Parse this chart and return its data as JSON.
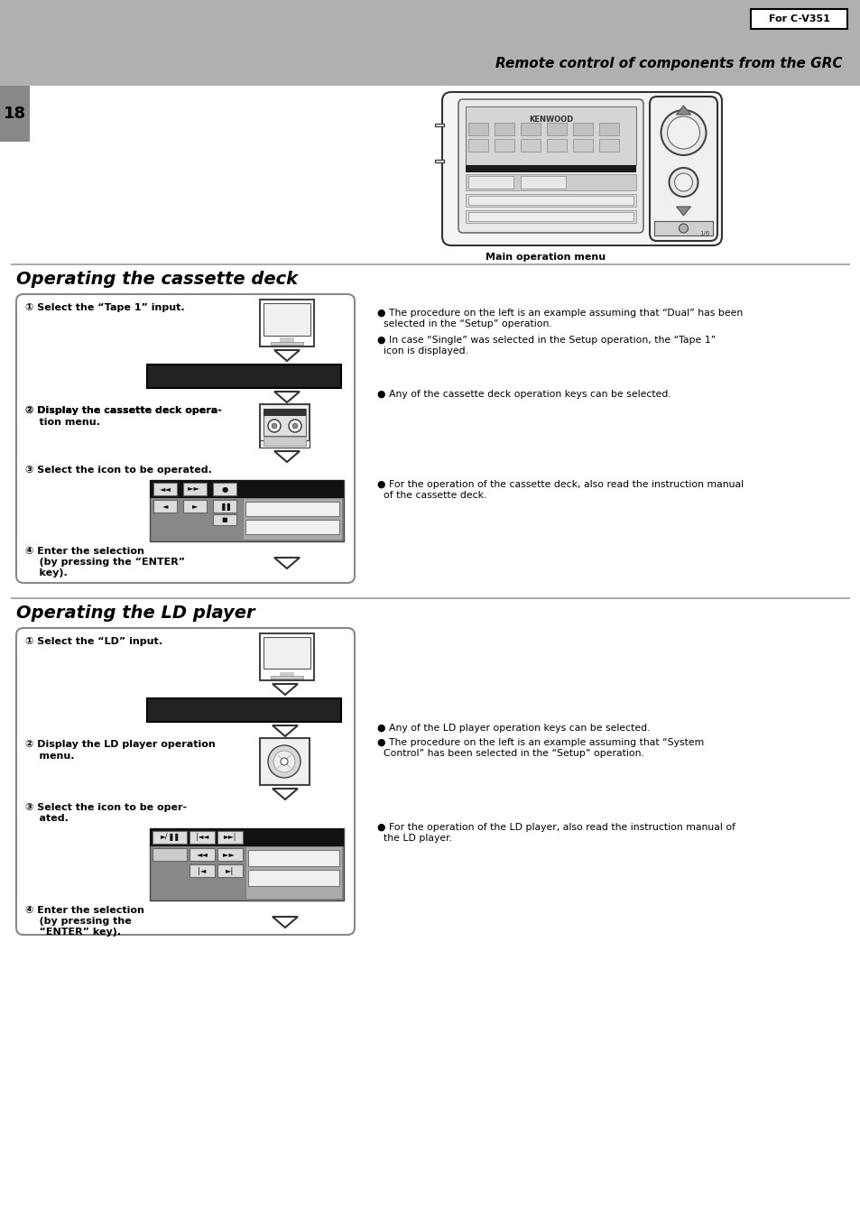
{
  "page_bg": "#ffffff",
  "header_bg": "#b0b0b0",
  "header_text": "Remote control of components from the GRC",
  "for_label": "For C-V351",
  "page_number": "18",
  "page_num_bg": "#888888",
  "section1_title": "Operating the cassette deck",
  "section2_title": "Operating the LD player",
  "main_op_label": "Main operation menu",
  "divider_color": "#aaaaaa",
  "step1_1": "① Select the “Tape 1” input.",
  "step1_2a": "② Display the cassette deck opera-",
  "step1_2b": "    tion menu.",
  "step1_3": "③ Select the icon to be operated.",
  "step1_4a": "④ Enter the selection",
  "step1_4b": "    (by pressing the “ENTER”",
  "step1_4c": "    key).",
  "step2_1": "① Select the “LD” input.",
  "step2_2a": "② Display the LD player operation",
  "step2_2b": "    menu.",
  "step2_3a": "③ Select the icon to be oper-",
  "step2_3b": "    ated.",
  "step2_4a": "④ Enter the selection",
  "step2_4b": "    (by pressing the",
  "step2_4c": "    “ENTER” key).",
  "note1_1": "● The procedure on the left is an example assuming that “Dual” has been",
  "note1_1b": "  selected in the “Setup” operation.",
  "note1_2": "● In case “Single” was selected in the Setup operation, the “Tape 1”",
  "note1_2b": "  icon is displayed.",
  "note1_3": "● Any of the cassette deck operation keys can be selected.",
  "note1_4": "● For the operation of the cassette deck, also read the instruction manual",
  "note1_4b": "  of the cassette deck.",
  "note2_1": "● Any of the LD player operation keys can be selected.",
  "note2_2": "● The procedure on the left is an example assuming that “System",
  "note2_2b": "  Control” has been selected in the “Setup” operation.",
  "note2_3": "● For the operation of the LD player, also read the instruction manual of",
  "note2_3b": "  the LD player."
}
